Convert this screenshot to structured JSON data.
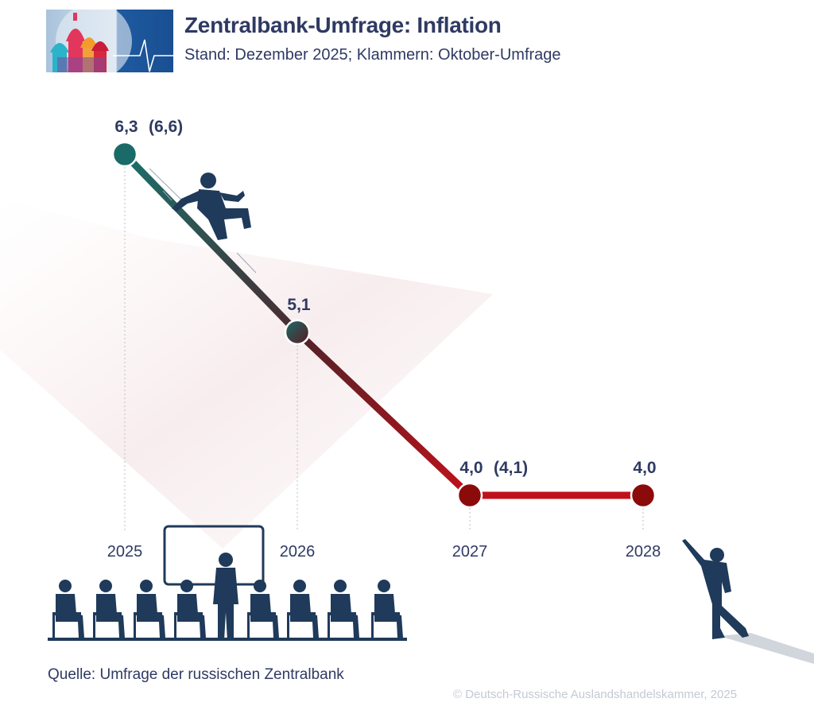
{
  "header": {
    "title": "Zentralbank-Umfrage: Inflation",
    "subtitle": "Stand: Dezember 2025; Klammern: Oktober-Umfrage"
  },
  "logo": {
    "icon": "moscow-cathedral-heartbeat-logo"
  },
  "colors": {
    "text": "#2f3a63",
    "teal": "#1a6b68",
    "dark_red": "#8b0a0a",
    "red": "#c0111a",
    "silhouette": "#1f3a5a"
  },
  "chart_data": {
    "type": "line",
    "x": [
      "2025",
      "2026",
      "2027",
      "2028"
    ],
    "series": [
      {
        "values": [
          6.3,
          5.1,
          4.0,
          4.0
        ]
      }
    ],
    "labels": [
      "6,3",
      "5,1",
      "4,0",
      "4,0"
    ],
    "previous_survey_labels": [
      "(6,6)",
      "",
      "(4,1)",
      ""
    ],
    "ylim": [
      3.5,
      6.5
    ],
    "grid": false,
    "title": "",
    "xlabel": "",
    "ylabel": ""
  },
  "footer": {
    "source": "Quelle: Umfrage der russischen Zentralbank",
    "copyright": "© Deutsch-Russische Auslandshandelskammer, 2025"
  }
}
